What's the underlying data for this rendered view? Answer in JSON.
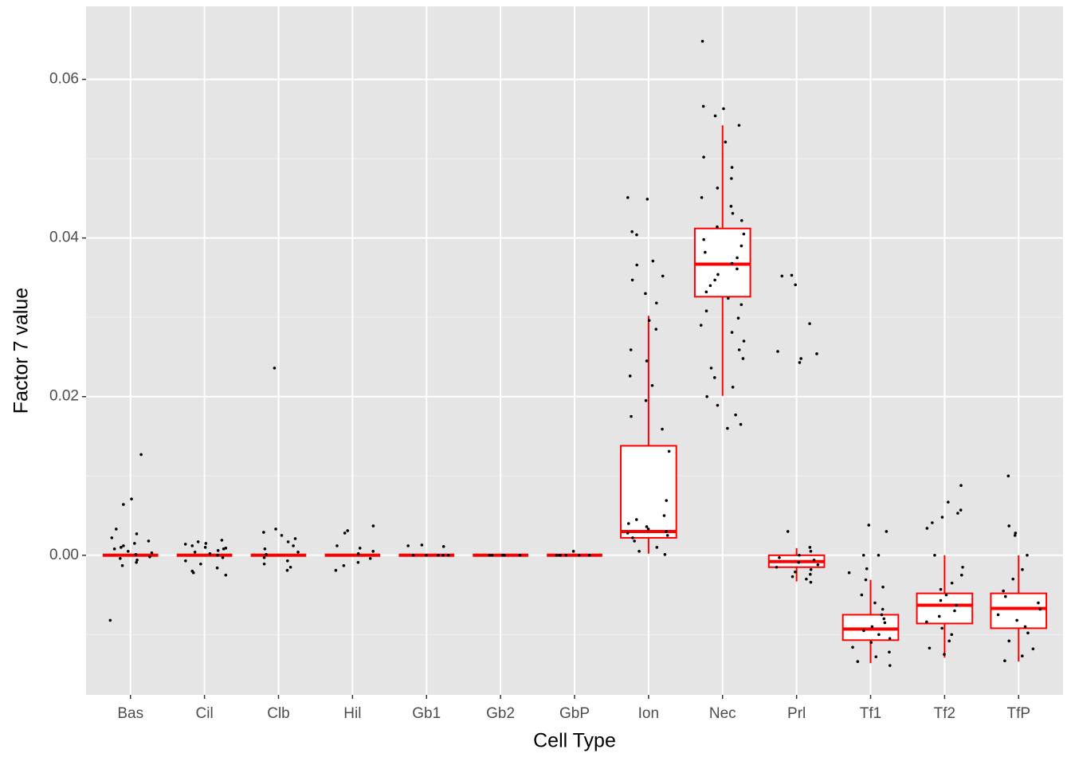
{
  "chart_data": {
    "type": "box",
    "x_label": "Cell Type",
    "y_label": "Factor 7 value",
    "categories": [
      "Bas",
      "Cil",
      "Clb",
      "Hil",
      "Gb1",
      "Gb2",
      "GbP",
      "Ion",
      "Nec",
      "Prl",
      "Tf1",
      "Tf2",
      "TfP"
    ],
    "boxes": [
      {
        "lower": 0,
        "q1": 0,
        "median": 0,
        "q3": 0,
        "upper": 0
      },
      {
        "lower": 0,
        "q1": 0,
        "median": 0,
        "q3": 0,
        "upper": 0
      },
      {
        "lower": 0,
        "q1": 0,
        "median": 0,
        "q3": 0,
        "upper": 0
      },
      {
        "lower": 0,
        "q1": 0,
        "median": 0,
        "q3": 0,
        "upper": 0
      },
      {
        "lower": 0,
        "q1": 0,
        "median": 0,
        "q3": 0,
        "upper": 0
      },
      {
        "lower": 0,
        "q1": 0,
        "median": 0,
        "q3": 0,
        "upper": 0
      },
      {
        "lower": 0,
        "q1": 0,
        "median": 0,
        "q3": 0,
        "upper": 0
      },
      {
        "lower": 0.0002,
        "q1": 0.0022,
        "median": 0.003,
        "q3": 0.0138,
        "upper": 0.0302
      },
      {
        "lower": 0.0201,
        "q1": 0.0326,
        "median": 0.0367,
        "q3": 0.0412,
        "upper": 0.0542
      },
      {
        "lower": -0.0033,
        "q1": -0.0015,
        "median": -0.0008,
        "q3": 0,
        "upper": 0.0009
      },
      {
        "lower": -0.0136,
        "q1": -0.0107,
        "median": -0.0093,
        "q3": -0.0075,
        "upper": -0.0031
      },
      {
        "lower": -0.0129,
        "q1": -0.0086,
        "median": -0.0063,
        "q3": -0.0048,
        "upper": 0
      },
      {
        "lower": -0.0134,
        "q1": -0.0092,
        "median": -0.0067,
        "q3": -0.0048,
        "upper": 0
      }
    ],
    "points": [
      [
        0.0127,
        0.0071,
        0.0064,
        -0.0082,
        0.0033,
        0.0027,
        0.0022,
        0.0018,
        0.0012,
        0.0008,
        0.0005,
        0.0003,
        0.0001,
        -0.0002,
        -0.0004,
        -0.0006,
        -0.0009,
        -0.0013,
        0.0015,
        0.001
      ],
      [
        0.0019,
        0.0017,
        0.0015,
        0.0012,
        0.001,
        0.0008,
        0.0006,
        0.0004,
        0.0002,
        0,
        -0.0003,
        -0.0007,
        -0.0011,
        -0.0016,
        -0.002,
        -0.0022,
        -0.0025,
        0.0014,
        0.0009
      ],
      [
        0.0236,
        0.0033,
        0.0029,
        0.0025,
        0.0021,
        0.0017,
        0.0012,
        0.0008,
        0.0004,
        0.0001,
        -0.0003,
        -0.0007,
        -0.0011,
        -0.0015,
        -0.0019
      ],
      [
        0.0037,
        0.0031,
        0.0028,
        0.0012,
        0.0009,
        0.0005,
        0.0002,
        -0.0004,
        -0.0009,
        -0.0013,
        -0.0019
      ],
      [
        0.0013,
        0.0012,
        0.0011,
        0,
        0,
        0,
        0,
        0
      ],
      [
        0,
        0,
        0,
        0,
        0,
        0
      ],
      [
        0.0005,
        0,
        0,
        0,
        0,
        0,
        0
      ],
      [
        0.0451,
        0.0449,
        0.0408,
        0.0404,
        0.0371,
        0.0366,
        0.0352,
        0.0347,
        0.033,
        0.0318,
        0.0296,
        0.0285,
        0.0259,
        0.0245,
        0.0226,
        0.0214,
        0.0195,
        0.0175,
        0.0159,
        0.0131,
        0.0069,
        0.005,
        0.0045,
        0.004,
        0.0036,
        0.0033,
        0.003,
        0.0028,
        0.0025,
        0.0022,
        0.0018,
        0.001,
        0.0005,
        0.0001
      ],
      [
        0.0648,
        0.0566,
        0.0563,
        0.0554,
        0.0542,
        0.0521,
        0.0502,
        0.0489,
        0.0475,
        0.0463,
        0.0451,
        0.044,
        0.0431,
        0.0422,
        0.0414,
        0.0405,
        0.0398,
        0.039,
        0.0382,
        0.0375,
        0.0368,
        0.0361,
        0.0354,
        0.0347,
        0.034,
        0.0332,
        0.0324,
        0.0316,
        0.0308,
        0.0299,
        0.029,
        0.0281,
        0.027,
        0.0259,
        0.0248,
        0.0236,
        0.0224,
        0.0212,
        0.02,
        0.0189,
        0.0177,
        0.0165,
        0.016
      ],
      [
        0.0353,
        0.0352,
        0.0341,
        0.0292,
        0.0257,
        0.0254,
        0.0248,
        0.0243,
        0.003,
        0.001,
        0.0005,
        0,
        -0.0003,
        -0.0006,
        -0.0009,
        -0.0012,
        -0.0015,
        -0.0018,
        -0.0021,
        -0.0024,
        -0.0027,
        -0.003,
        -0.0034
      ],
      [
        0.0038,
        0.003,
        0,
        0,
        -0.0017,
        -0.0022,
        -0.0031,
        -0.004,
        -0.005,
        -0.006,
        -0.0068,
        -0.0075,
        -0.008,
        -0.0085,
        -0.009,
        -0.0095,
        -0.01,
        -0.0105,
        -0.011,
        -0.0116,
        -0.0122,
        -0.0128,
        -0.0134,
        -0.0139
      ],
      [
        0.0088,
        0.0067,
        0.0057,
        0.0053,
        0.0048,
        0.0041,
        0.0034,
        0,
        -0.0015,
        -0.0025,
        -0.0035,
        -0.0043,
        -0.005,
        -0.0057,
        -0.0063,
        -0.007,
        -0.0077,
        -0.0084,
        -0.0092,
        -0.01,
        -0.0108,
        -0.0117,
        -0.0125
      ],
      [
        0.01,
        0.0037,
        0.0028,
        0.0025,
        0,
        -0.0018,
        -0.003,
        -0.0045,
        -0.0052,
        -0.006,
        -0.0068,
        -0.0075,
        -0.0082,
        -0.009,
        -0.0098,
        -0.0108,
        -0.0118,
        -0.0127,
        -0.0133
      ]
    ],
    "box_color": "#ff0000",
    "point_color": "#000000",
    "ylim": [
      -0.0176,
      0.0692
    ],
    "yticks": [
      {
        "value": 0,
        "label": "0.00"
      },
      {
        "value": 0.02,
        "label": "0.02"
      },
      {
        "value": 0.04,
        "label": "0.04"
      },
      {
        "value": 0.06,
        "label": "0.06"
      }
    ],
    "minor_yticks": [
      -0.01,
      0.01,
      0.03,
      0.05
    ],
    "grid": true
  }
}
